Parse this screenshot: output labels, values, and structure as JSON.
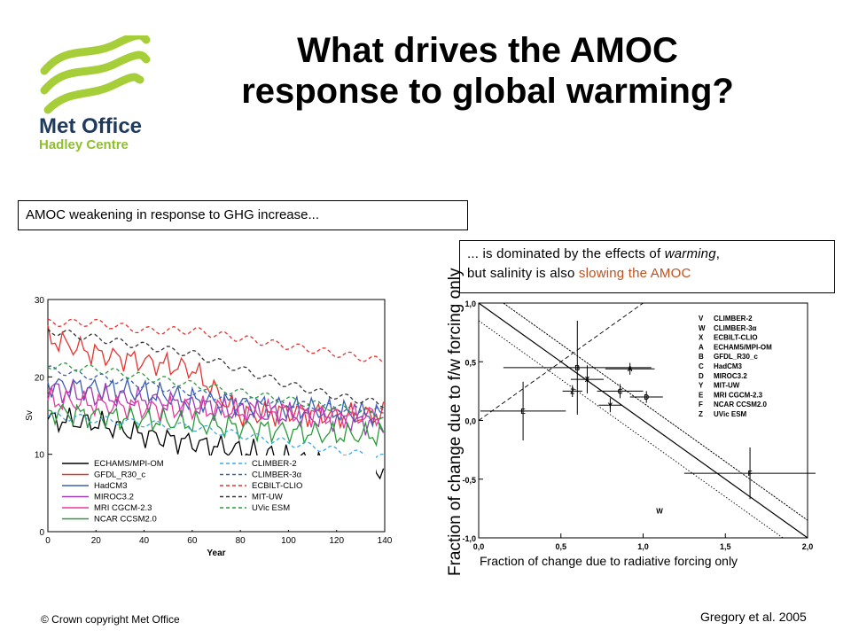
{
  "slide": {
    "title_line1": "What drives the AMOC",
    "title_line2": "response to global warming?",
    "box1_text": "AMOC weakening in response to GHG increase...",
    "box2_line1_a": "... is dominated by the effects of ",
    "box2_line1_italic": "warming",
    "box2_line1_b": ",",
    "box2_line2_a": "but salinity is also ",
    "box2_line2_highlight": "slowing the AMOC",
    "copyright": "© Crown  copyright   Met Office",
    "citation": "Gregory et al. 2005",
    "logo_line1": "Met Office",
    "logo_line2": "Hadley Centre",
    "colors": {
      "logo_green": "#a6ce39",
      "logo_text": "#1e3a5c",
      "highlight": "#c0501f"
    }
  },
  "chart_data": [
    {
      "type": "line",
      "xlabel": "Year",
      "ylabel": "Sv",
      "xlim": [
        0,
        140
      ],
      "ylim": [
        0,
        30
      ],
      "xticks": [
        "0",
        "20",
        "40",
        "60",
        "80",
        "100",
        "120",
        "140"
      ],
      "yticks": [
        "0",
        "10",
        "20",
        "30"
      ],
      "grid": false,
      "legend_position": "bottom-left",
      "series": [
        {
          "name": "ECHAMS/MPI-OM",
          "color": "#000000",
          "dash": "solid",
          "x": [
            0,
            20,
            40,
            60,
            80,
            100,
            120,
            140
          ],
          "values": [
            14.5,
            14,
            12.5,
            11.5,
            10.5,
            9.5,
            8.5,
            8
          ]
        },
        {
          "name": "GFDL_R30_c",
          "color": "#e8322e",
          "dash": "solid",
          "x": [
            0,
            20,
            40,
            60,
            80,
            100,
            120,
            140
          ],
          "values": [
            25,
            23,
            22,
            21,
            15,
            15.5,
            15,
            15
          ]
        },
        {
          "name": "HadCM3",
          "color": "#3b5fb5",
          "dash": "solid",
          "x": [
            0,
            20,
            40,
            60,
            80,
            100,
            120,
            140
          ],
          "values": [
            19,
            18.5,
            18,
            17,
            16.5,
            16,
            15.5,
            15
          ]
        },
        {
          "name": "MIROC3.2",
          "color": "#a03ab5",
          "dash": "solid",
          "x": [
            0,
            20,
            40,
            60,
            80,
            100,
            120,
            140
          ],
          "values": [
            18.5,
            17.5,
            17,
            16.5,
            15.5,
            15,
            14.5,
            14
          ]
        },
        {
          "name": "MRI CGCM-2.3",
          "color": "#e83a9c",
          "dash": "solid",
          "x": [
            0,
            20,
            40,
            60,
            80,
            100,
            120,
            140
          ],
          "values": [
            17,
            16.5,
            16,
            16,
            15.5,
            15.5,
            15,
            15
          ]
        },
        {
          "name": "NCAR CCSM2.0",
          "color": "#2b9a3a",
          "dash": "solid",
          "x": [
            0,
            20,
            40,
            60,
            80,
            100,
            120,
            140
          ],
          "values": [
            15.5,
            15,
            14.5,
            14,
            13.5,
            13,
            12.5,
            12.5
          ]
        },
        {
          "name": "CLIMBER-2",
          "color": "#3aa8e8",
          "dash": "dashed",
          "x": [
            0,
            20,
            40,
            60,
            80,
            100,
            120,
            140
          ],
          "values": [
            15,
            14.5,
            14,
            13.5,
            12.5,
            11.5,
            10.5,
            9.5
          ]
        },
        {
          "name": "CLIMBER-3α",
          "color": "#3b5fb5",
          "dash": "dashed",
          "x": [
            0,
            20,
            40,
            60,
            80,
            100,
            120,
            140
          ],
          "values": [
            21,
            20,
            19,
            18,
            17,
            16.5,
            16,
            15.5
          ]
        },
        {
          "name": "ECBILT-CLIO",
          "color": "#e8322e",
          "dash": "dashed",
          "x": [
            0,
            20,
            40,
            60,
            80,
            100,
            120,
            140
          ],
          "values": [
            27,
            27,
            26,
            26,
            25,
            24,
            23,
            22
          ]
        },
        {
          "name": "MIT-UW",
          "color": "#333333",
          "dash": "dashed",
          "x": [
            0,
            20,
            40,
            60,
            80,
            100,
            120,
            140
          ],
          "values": [
            26,
            25,
            24,
            23,
            21,
            19,
            17.5,
            16.5
          ]
        },
        {
          "name": "UVic ESM",
          "color": "#2b9a3a",
          "dash": "dashed",
          "x": [
            0,
            20,
            40,
            60,
            80,
            100,
            120,
            140
          ],
          "values": [
            21.5,
            21,
            20,
            19,
            18,
            17,
            16,
            15
          ]
        }
      ]
    },
    {
      "type": "scatter",
      "xlabel": "Fraction of change due to radiative forcing only",
      "ylabel": "Fraction of change due to f/w forcing only",
      "xlim": [
        0,
        2
      ],
      "ylim": [
        -1,
        1
      ],
      "xticks": [
        "0,0",
        "0,5",
        "1,0",
        "1,5",
        "2,0"
      ],
      "yticks": [
        "1,0",
        "0,5",
        "0,0",
        "-0,5",
        "-1,0"
      ],
      "legend_position": "top-right",
      "legend": [
        {
          "code": "V",
          "name": "CLIMBER-2"
        },
        {
          "code": "W",
          "name": "CLIMBER-3α"
        },
        {
          "code": "X",
          "name": "ECBILT-CLIO"
        },
        {
          "code": "A",
          "name": "ECHAM5/MPI-OM"
        },
        {
          "code": "B",
          "name": "GFDL_R30_c"
        },
        {
          "code": "C",
          "name": "HadCM3"
        },
        {
          "code": "D",
          "name": "MIROC3.2"
        },
        {
          "code": "Y",
          "name": "MIT-UW"
        },
        {
          "code": "E",
          "name": "MRI CGCM-2.3"
        },
        {
          "code": "F",
          "name": "NCAR CCSM2.0"
        },
        {
          "code": "Z",
          "name": "UVic ESM"
        }
      ],
      "points": [
        {
          "label": "B",
          "x": 0.6,
          "y": 0.45,
          "xerr": 0.45,
          "yerr": 0.4
        },
        {
          "label": "A",
          "x": 0.92,
          "y": 0.44,
          "xerr": 0.15,
          "yerr": 0.05
        },
        {
          "label": "X",
          "x": 0.66,
          "y": 0.35,
          "xerr": 0.1,
          "yerr": 0.12
        },
        {
          "label": "Z",
          "x": 0.57,
          "y": 0.25,
          "xerr": 0.06,
          "yerr": 0.05
        },
        {
          "label": "C",
          "x": 0.86,
          "y": 0.25,
          "xerr": 0.14,
          "yerr": 0.06
        },
        {
          "label": "D",
          "x": 1.02,
          "y": 0.2,
          "xerr": 0.1,
          "yerr": 0.05
        },
        {
          "label": "Y",
          "x": 0.8,
          "y": 0.13,
          "xerr": 0.07,
          "yerr": 0.06
        },
        {
          "label": "E",
          "x": 0.27,
          "y": 0.08,
          "xerr": 0.26,
          "yerr": 0.25
        },
        {
          "label": "F",
          "x": 1.65,
          "y": -0.45,
          "xerr": 0.4,
          "yerr": 0.22
        },
        {
          "label": "W",
          "x": 1.1,
          "y": -0.77,
          "xerr": 0,
          "yerr": 0
        }
      ],
      "lines": [
        {
          "style": "solid",
          "from": [
            0,
            1
          ],
          "to": [
            2,
            -1
          ]
        },
        {
          "style": "dotted",
          "from": [
            0,
            1.15
          ],
          "to": [
            2,
            -0.85
          ]
        },
        {
          "style": "dotted",
          "from": [
            0.15,
            1
          ],
          "to": [
            2,
            -0.85
          ]
        },
        {
          "style": "dotted",
          "from": [
            0,
            0.85
          ],
          "to": [
            1.85,
            -1
          ]
        },
        {
          "style": "dashed",
          "from": [
            0,
            0
          ],
          "to": [
            1,
            1
          ]
        }
      ]
    }
  ]
}
